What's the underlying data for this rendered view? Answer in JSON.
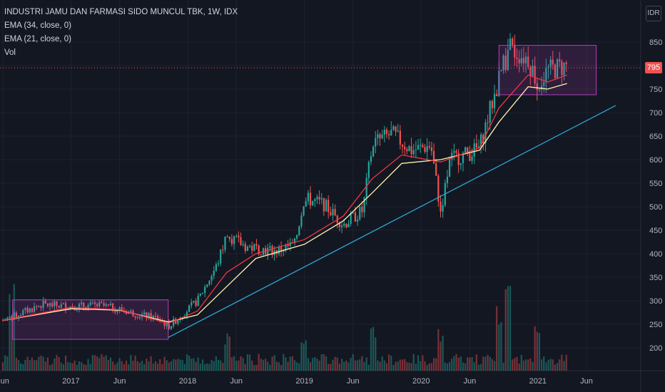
{
  "header": {
    "title": "INDUSTRI JAMU DAN FARMASI SIDO MUNCUL TBK, 1W, IDX",
    "indicators": [
      "EMA (34, close, 0)",
      "EMA (21, close, 0)",
      "Vol"
    ]
  },
  "currency": "IDR",
  "last_price": "795",
  "colors": {
    "background": "#131722",
    "up": "#26a69a",
    "down": "#ef5350",
    "ema34": "#fff3b0",
    "ema21": "#f23645",
    "trendline": "#2ea6d6",
    "rect": "#b23fb5",
    "grid": "#1e222d",
    "axis_text": "#b2b5be"
  },
  "chart_data": {
    "type": "candlestick",
    "y_ticks": [
      200,
      250,
      300,
      350,
      400,
      450,
      500,
      550,
      600,
      650,
      700,
      750,
      800,
      850
    ],
    "x_ticks": [
      "Jun",
      "2017",
      "Jun",
      "2018",
      "Jun",
      "2019",
      "Jun",
      "2020",
      "Jun",
      "2021",
      "Jun"
    ],
    "x_range": [
      "2016-06",
      "2021-09"
    ],
    "y_range": [
      175,
      910
    ],
    "price_path": [
      [
        "2016-06",
        258
      ],
      [
        "2016-08",
        275
      ],
      [
        "2016-10",
        292
      ],
      [
        "2017-01",
        288
      ],
      [
        "2017-04",
        290
      ],
      [
        "2017-06",
        282
      ],
      [
        "2017-08",
        270
      ],
      [
        "2017-10",
        263
      ],
      [
        "2017-11",
        245
      ],
      [
        "2017-12",
        262
      ],
      [
        "2018-02",
        300
      ],
      [
        "2018-04",
        375
      ],
      [
        "2018-05",
        440
      ],
      [
        "2018-07",
        415
      ],
      [
        "2018-10",
        405
      ],
      [
        "2018-12",
        420
      ],
      [
        "2019-01",
        518
      ],
      [
        "2019-03",
        505
      ],
      [
        "2019-05",
        462
      ],
      [
        "2019-07",
        492
      ],
      [
        "2019-08",
        635
      ],
      [
        "2019-10",
        655
      ],
      [
        "2019-12",
        620
      ],
      [
        "2020-02",
        630
      ],
      [
        "2020-03",
        490
      ],
      [
        "2020-04",
        600
      ],
      [
        "2020-06",
        615
      ],
      [
        "2020-07",
        625
      ],
      [
        "2020-08",
        700
      ],
      [
        "2020-09",
        770
      ],
      [
        "2020-10",
        835
      ],
      [
        "2020-12",
        815
      ],
      [
        "2021-01",
        760
      ],
      [
        "2021-02",
        790
      ],
      [
        "2021-04",
        800
      ]
    ],
    "ema34": [
      [
        "2016-06",
        258
      ],
      [
        "2017-01",
        283
      ],
      [
        "2017-06",
        280
      ],
      [
        "2017-11",
        255
      ],
      [
        "2018-02",
        270
      ],
      [
        "2018-05",
        330
      ],
      [
        "2018-08",
        390
      ],
      [
        "2019-01",
        420
      ],
      [
        "2019-05",
        470
      ],
      [
        "2019-08",
        530
      ],
      [
        "2019-11",
        592
      ],
      [
        "2020-03",
        600
      ],
      [
        "2020-07",
        620
      ],
      [
        "2020-09",
        680
      ],
      [
        "2020-12",
        755
      ],
      [
        "2021-02",
        750
      ],
      [
        "2021-04",
        762
      ]
    ],
    "ema21": [
      [
        "2016-06",
        258
      ],
      [
        "2017-01",
        286
      ],
      [
        "2017-06",
        281
      ],
      [
        "2017-11",
        252
      ],
      [
        "2018-02",
        278
      ],
      [
        "2018-05",
        360
      ],
      [
        "2018-08",
        400
      ],
      [
        "2019-01",
        430
      ],
      [
        "2019-05",
        480
      ],
      [
        "2019-08",
        560
      ],
      [
        "2019-11",
        610
      ],
      [
        "2020-03",
        595
      ],
      [
        "2020-07",
        625
      ],
      [
        "2020-09",
        710
      ],
      [
        "2020-12",
        780
      ],
      [
        "2021-02",
        765
      ],
      [
        "2021-04",
        780
      ]
    ],
    "trendline": {
      "start": [
        "2017-11",
        222
      ],
      "end": [
        "2021-09",
        715
      ]
    },
    "rectangles": [
      {
        "x0": "2016-07",
        "x1": "2017-11",
        "y0": 218,
        "y1": 302
      },
      {
        "x0": "2020-09",
        "x1": "2021-07",
        "y0": 738,
        "y1": 843
      }
    ],
    "current_price_line": 795,
    "volume_spikes": [
      [
        "2016-07",
        0.95
      ],
      [
        "2018-05",
        0.45
      ],
      [
        "2019-01",
        0.35
      ],
      [
        "2019-08",
        0.55
      ],
      [
        "2020-03",
        0.5
      ],
      [
        "2020-09",
        0.75
      ],
      [
        "2020-10",
        0.95
      ],
      [
        "2021-01",
        0.65
      ]
    ]
  }
}
